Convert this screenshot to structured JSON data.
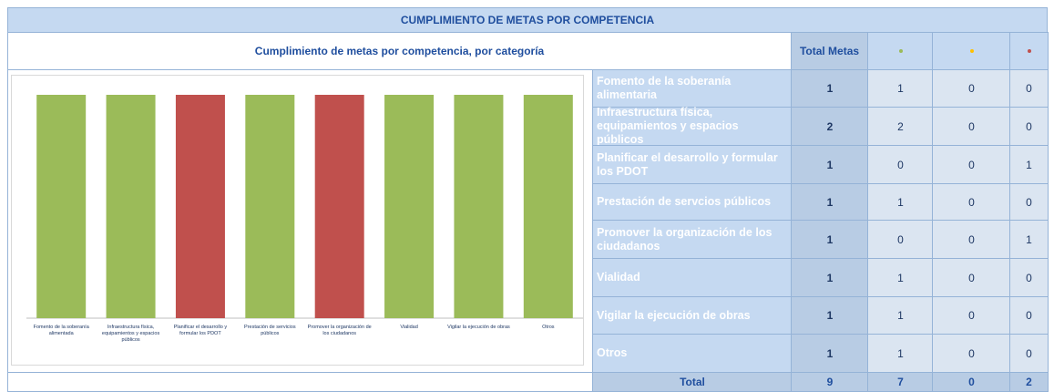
{
  "title": "CUMPLIMIENTO DE METAS POR COMPETENCIA",
  "subtitle": "Cumplimiento de metas por competencia, por categoría",
  "table": {
    "header": "Total Metas",
    "status_colors": [
      "#9bbb59",
      "#ffc000",
      "#c0504d"
    ],
    "rows": [
      [
        "Fomento de la soberanía alimentaria",
        1,
        1,
        0,
        0
      ],
      [
        "Infraestructura física, equipamientos y espacios públicos",
        2,
        2,
        0,
        0
      ],
      [
        "Planificar el desarrollo y formular los PDOT",
        1,
        0,
        0,
        1
      ],
      [
        "Prestación de servcios públicos",
        1,
        1,
        0,
        0
      ],
      [
        "Promover la organización de los ciudadanos",
        1,
        0,
        0,
        1
      ],
      [
        "Vialidad",
        1,
        1,
        0,
        0
      ],
      [
        "Vigilar la ejecución de obras",
        1,
        1,
        0,
        0
      ],
      [
        "Otros",
        1,
        1,
        0,
        0
      ]
    ],
    "total": [
      "Total",
      9,
      7,
      0,
      2
    ]
  },
  "chart_data": {
    "type": "bar",
    "stacked": "percent",
    "categories": [
      "Fomento de la soberanía alimentada",
      "Infraestructura física, equipamientos y espacios públicos",
      "Planificar el desarrollo y formular los PDOT",
      "Prestación de servicios públicos",
      "Promover la organización de los ciudadanos",
      "Vialidad",
      "Vigilar la ejecución de obras",
      "Otros"
    ],
    "series": [
      {
        "color": "#9bbb59",
        "values": [
          1,
          2,
          0,
          1,
          0,
          1,
          1,
          1
        ]
      },
      {
        "color": "#ffc000",
        "values": [
          0,
          0,
          0,
          0,
          0,
          0,
          0,
          0
        ]
      },
      {
        "color": "#c0504d",
        "values": [
          0,
          0,
          1,
          0,
          1,
          0,
          0,
          0
        ]
      }
    ]
  }
}
